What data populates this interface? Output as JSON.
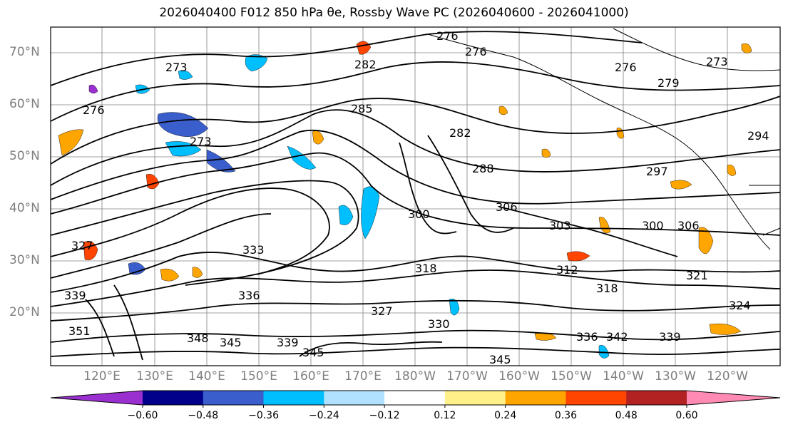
{
  "title": "2026040400 F012 850 hPa θe, Rossby Wave PC (2026040600 - 2026041000)",
  "latitude_labels": [
    "70°N",
    "60°N",
    "50°N",
    "40°N",
    "30°N",
    "20°N"
  ],
  "longitude_labels": [
    "120°E",
    "130°E",
    "140°E",
    "150°E",
    "160°E",
    "170°E",
    "180°W",
    "170°W",
    "160°W",
    "150°W",
    "140°W",
    "130°W",
    "120°W"
  ],
  "contour_labels": [
    "276",
    "273",
    "276",
    "282",
    "276",
    "276",
    "279",
    "273",
    "285",
    "282",
    "273",
    "288",
    "297",
    "294",
    "300",
    "306",
    "303",
    "300",
    "306",
    "321",
    "312",
    "318",
    "318",
    "324",
    "327",
    "330",
    "336",
    "342",
    "339",
    "345",
    "345",
    "339",
    "336",
    "333",
    "345",
    "348",
    "351",
    "339",
    "327"
  ],
  "colorbar": {
    "tick_labels": [
      "−0.60",
      "−0.48",
      "−0.36",
      "−0.24",
      "−0.12",
      "0.12",
      "0.24",
      "0.36",
      "0.48",
      "0.60"
    ],
    "colors": [
      "#9b30d0",
      "#00008b",
      "#3a5fcd",
      "#00bfff",
      "#b0e2ff",
      "#ffffff",
      "#fff08a",
      "#ffa500",
      "#ff4500",
      "#b22222",
      "#ff8ab4",
      "#ff8ab4"
    ],
    "extend": "both"
  },
  "colors": {
    "contour": "#000000",
    "coastline": "#000000",
    "grid": "#808080",
    "axis_label": "#7f7f7f"
  }
}
